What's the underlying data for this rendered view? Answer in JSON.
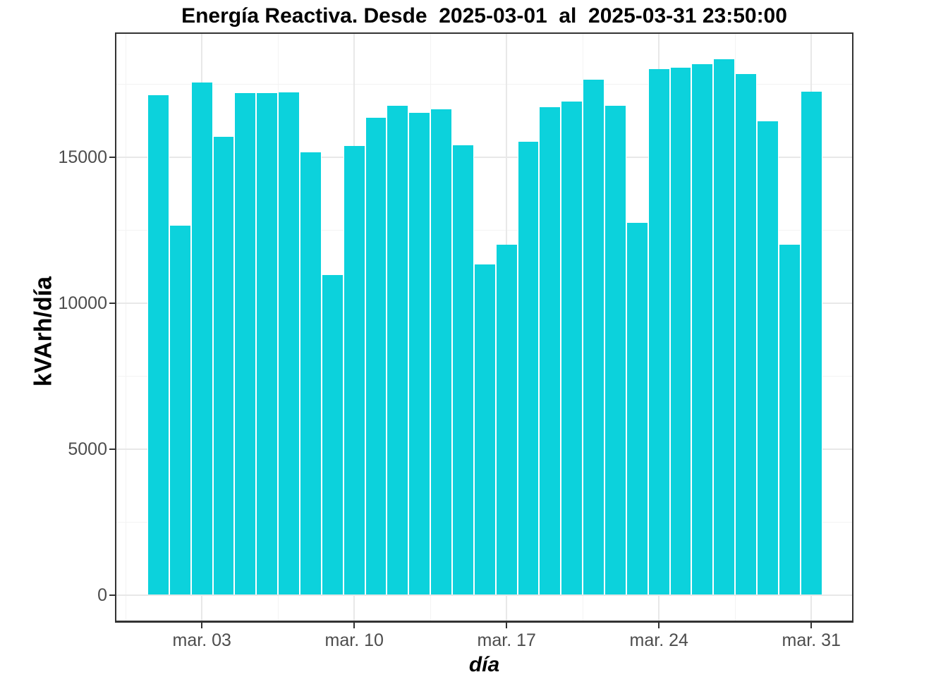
{
  "chart_data": {
    "type": "bar",
    "title": "Energía Reactiva. Desde  2025-03-01  al  2025-03-31 23:50:00",
    "xlabel": "día",
    "ylabel": "kVArh/día",
    "bar_color": "#0CD2DC",
    "legend_position": "none",
    "grid": {
      "major": "on",
      "minor": "on"
    },
    "categories": [
      "2025-03-01",
      "2025-03-02",
      "2025-03-03",
      "2025-03-04",
      "2025-03-05",
      "2025-03-06",
      "2025-03-07",
      "2025-03-08",
      "2025-03-09",
      "2025-03-10",
      "2025-03-11",
      "2025-03-12",
      "2025-03-13",
      "2025-03-14",
      "2025-03-15",
      "2025-03-16",
      "2025-03-17",
      "2025-03-18",
      "2025-03-19",
      "2025-03-20",
      "2025-03-21",
      "2025-03-22",
      "2025-03-23",
      "2025-03-24",
      "2025-03-25",
      "2025-03-26",
      "2025-03-27",
      "2025-03-28",
      "2025-03-29",
      "2025-03-30",
      "2025-03-31"
    ],
    "values": [
      17125,
      12640,
      17540,
      15680,
      17180,
      17180,
      17215,
      15150,
      10965,
      15370,
      16345,
      16740,
      16520,
      16640,
      15395,
      11305,
      12000,
      15515,
      16700,
      16885,
      17635,
      16745,
      12735,
      18000,
      18065,
      18175,
      18340,
      17850,
      16225,
      12000,
      17230
    ],
    "x_axis": {
      "tick_labels": [
        "mar. 03",
        "mar. 10",
        "mar. 17",
        "mar. 24",
        "mar. 31"
      ],
      "tick_days": [
        3,
        10,
        17,
        24,
        31
      ],
      "minor_days": [
        -0.5,
        6.5,
        13.5,
        20.5,
        27.5
      ]
    },
    "y_axis": {
      "tick_labels": [
        "0",
        "5000",
        "10000",
        "15000"
      ],
      "tick_values": [
        0,
        5000,
        10000,
        15000
      ],
      "minor_values": [
        2500,
        7500,
        12500,
        17500
      ],
      "ylim": [
        0,
        19200
      ]
    }
  },
  "colors": {
    "bar": "#0CD2DC",
    "panel_border": "#333333",
    "grid_major": "#e8e8e8",
    "grid_minor": "#f3f3f3",
    "axis_text": "#4d4d4d",
    "title_text": "#000000"
  }
}
